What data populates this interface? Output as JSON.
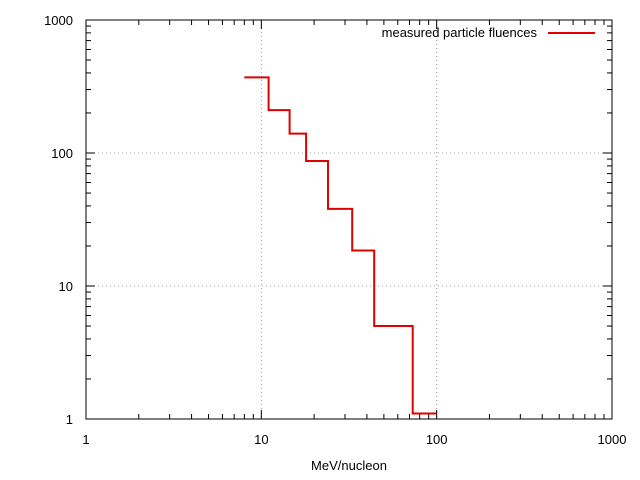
{
  "chart_data": {
    "type": "line",
    "title": "",
    "xlabel": "MeV/nucleon",
    "ylabel": "",
    "xscale": "log",
    "yscale": "log",
    "xlim": [
      1,
      1000
    ],
    "ylim": [
      1,
      1000
    ],
    "x_ticks": [
      "1",
      "10",
      "100",
      "1000"
    ],
    "y_ticks": [
      "1",
      "10",
      "100",
      "1000"
    ],
    "grid": true,
    "legend_position": "top-right",
    "series": [
      {
        "name": "measured particle fluences",
        "color": "#e00000",
        "style": "step",
        "bins": [
          {
            "x0": 8,
            "x1": 11,
            "y": 370
          },
          {
            "x0": 11,
            "x1": 14.5,
            "y": 210
          },
          {
            "x0": 14.5,
            "x1": 18,
            "y": 140
          },
          {
            "x0": 18,
            "x1": 24,
            "y": 87
          },
          {
            "x0": 24,
            "x1": 33,
            "y": 38
          },
          {
            "x0": 33,
            "x1": 44,
            "y": 18.5
          },
          {
            "x0": 44,
            "x1": 73,
            "y": 5
          },
          {
            "x0": 73,
            "x1": 100,
            "y": 1.1
          }
        ]
      }
    ]
  }
}
